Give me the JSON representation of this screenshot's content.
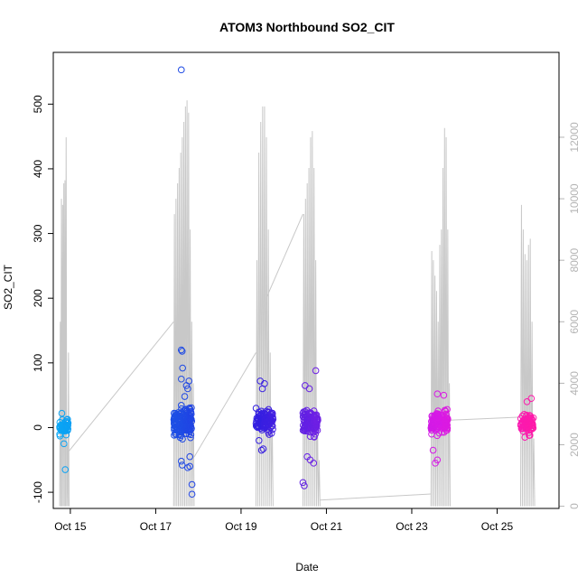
{
  "chart_data": {
    "type": "scatter",
    "title": "ATOM3 Northbound SO2_CIT",
    "xlabel": "Date",
    "ylabel": "SO2_CIT",
    "x_unit": "day of October",
    "xlim": [
      14.6,
      26.45
    ],
    "ylim": [
      -125,
      580
    ],
    "y2lim": [
      -71,
      14760
    ],
    "x_ticks": [
      {
        "x": 15,
        "label": "Oct 15"
      },
      {
        "x": 17,
        "label": "Oct 17"
      },
      {
        "x": 19,
        "label": "Oct 19"
      },
      {
        "x": 21,
        "label": "Oct 21"
      },
      {
        "x": 23,
        "label": "Oct 23"
      },
      {
        "x": 25,
        "label": "Oct 25"
      }
    ],
    "y_ticks": [
      -100,
      0,
      100,
      200,
      300,
      400,
      500
    ],
    "y2_ticks": [
      0,
      2000,
      4000,
      6000,
      8000,
      10000,
      12000
    ],
    "colors": {
      "point_gradient": [
        "#0aa6f5",
        "#1a5ce6",
        "#2a1fe0",
        "#8a20e6",
        "#d81ae6",
        "#ff1aa8"
      ],
      "altitude_line": "#c8c8c8",
      "frame": "#000000",
      "right_axis": "#b4b4b4"
    },
    "series": [
      {
        "name": "",
        "kind": "scatter",
        "flights": [
          {
            "x_start": 14.75,
            "x_end": 14.95,
            "y_center": 0,
            "spread": 8,
            "n": 60,
            "extra": [
              [
                14.88,
                -65
              ],
              [
                14.8,
                22
              ],
              [
                14.85,
                -25
              ]
            ]
          },
          {
            "x_start": 17.42,
            "x_end": 17.85,
            "y_center": 8,
            "spread": 16,
            "n": 170,
            "extra": [
              [
                17.6,
                553
              ],
              [
                17.6,
                120
              ],
              [
                17.62,
                118
              ],
              [
                17.63,
                92
              ],
              [
                17.6,
                75
              ],
              [
                17.68,
                48
              ],
              [
                17.78,
                72
              ],
              [
                17.8,
                -60
              ],
              [
                17.85,
                -88
              ],
              [
                17.85,
                -103
              ],
              [
                17.6,
                -52
              ],
              [
                17.62,
                -58
              ],
              [
                17.75,
                -62
              ],
              [
                17.8,
                -45
              ],
              [
                17.72,
                65
              ],
              [
                17.75,
                60
              ]
            ]
          },
          {
            "x_start": 19.35,
            "x_end": 19.75,
            "y_center": 10,
            "spread": 14,
            "n": 110,
            "extra": [
              [
                19.45,
                72
              ],
              [
                19.5,
                60
              ],
              [
                19.55,
                68
              ],
              [
                19.48,
                -35
              ],
              [
                19.52,
                -33
              ],
              [
                19.42,
                -20
              ]
            ]
          },
          {
            "x_start": 20.45,
            "x_end": 20.8,
            "y_center": 8,
            "spread": 15,
            "n": 130,
            "extra": [
              [
                20.75,
                88
              ],
              [
                20.5,
                65
              ],
              [
                20.6,
                60
              ],
              [
                20.45,
                -85
              ],
              [
                20.48,
                -90
              ],
              [
                20.7,
                -55
              ],
              [
                20.62,
                -50
              ],
              [
                20.55,
                -45
              ]
            ]
          },
          {
            "x_start": 23.45,
            "x_end": 23.85,
            "y_center": 8,
            "spread": 13,
            "n": 150,
            "extra": [
              [
                23.6,
                52
              ],
              [
                23.75,
                50
              ],
              [
                23.55,
                -55
              ],
              [
                23.6,
                -50
              ],
              [
                23.5,
                -35
              ]
            ]
          },
          {
            "x_start": 25.55,
            "x_end": 25.85,
            "y_center": 6,
            "spread": 11,
            "n": 90,
            "extra": [
              [
                25.8,
                45
              ],
              [
                25.7,
                40
              ],
              [
                25.75,
                -12
              ],
              [
                25.65,
                -15
              ]
            ]
          }
        ]
      },
      {
        "name": "",
        "kind": "line",
        "axis": "right",
        "segments": [
          {
            "x_start": 14.75,
            "x_end": 14.97,
            "top": 12000,
            "bottom": 0,
            "peaks": [
              6000,
              10000,
              9800,
              10500,
              10600,
              12000,
              2000,
              5000
            ]
          },
          {
            "x_start": 17.42,
            "x_end": 17.9,
            "top": 13000,
            "bottom": 0,
            "peaks": [
              9500,
              10000,
              10500,
              11000,
              11500,
              12000,
              12500,
              13000,
              13200,
              12800,
              9000,
              6000,
              4000
            ]
          },
          {
            "x_start": 19.35,
            "x_end": 19.75,
            "top": 13000,
            "bottom": 0,
            "peaks": [
              8000,
              11500,
              12500,
              13000,
              13000,
              12000,
              9000,
              5000,
              3000
            ]
          },
          {
            "x_start": 20.45,
            "x_end": 20.85,
            "top": 12200,
            "bottom": 0,
            "peaks": [
              9500,
              10000,
              10500,
              11000,
              12000,
              12200,
              11000,
              8000,
              3000,
              1500
            ]
          },
          {
            "x_start": 23.45,
            "x_end": 23.9,
            "top": 12500,
            "bottom": 0,
            "peaks": [
              8300,
              8000,
              7500,
              7000,
              6000,
              8500,
              9000,
              11000,
              12300,
              12000,
              9000,
              4000
            ]
          },
          {
            "x_start": 25.55,
            "x_end": 25.88,
            "top": 10000,
            "bottom": 0,
            "peaks": [
              9800,
              9000,
              8200,
              8000,
              8500,
              8700,
              6000,
              2200
            ]
          }
        ],
        "transits": [
          [
            [
              14.97,
              1800
            ],
            [
              17.42,
              6000
            ]
          ],
          [
            [
              17.9,
              1600
            ],
            [
              19.35,
              5000
            ]
          ],
          [
            [
              19.6,
              6800
            ],
            [
              20.45,
              9500
            ]
          ],
          [
            [
              20.85,
              200
            ],
            [
              23.45,
              400
            ]
          ],
          [
            [
              23.9,
              2800
            ],
            [
              25.55,
              2900
            ]
          ]
        ]
      }
    ]
  }
}
